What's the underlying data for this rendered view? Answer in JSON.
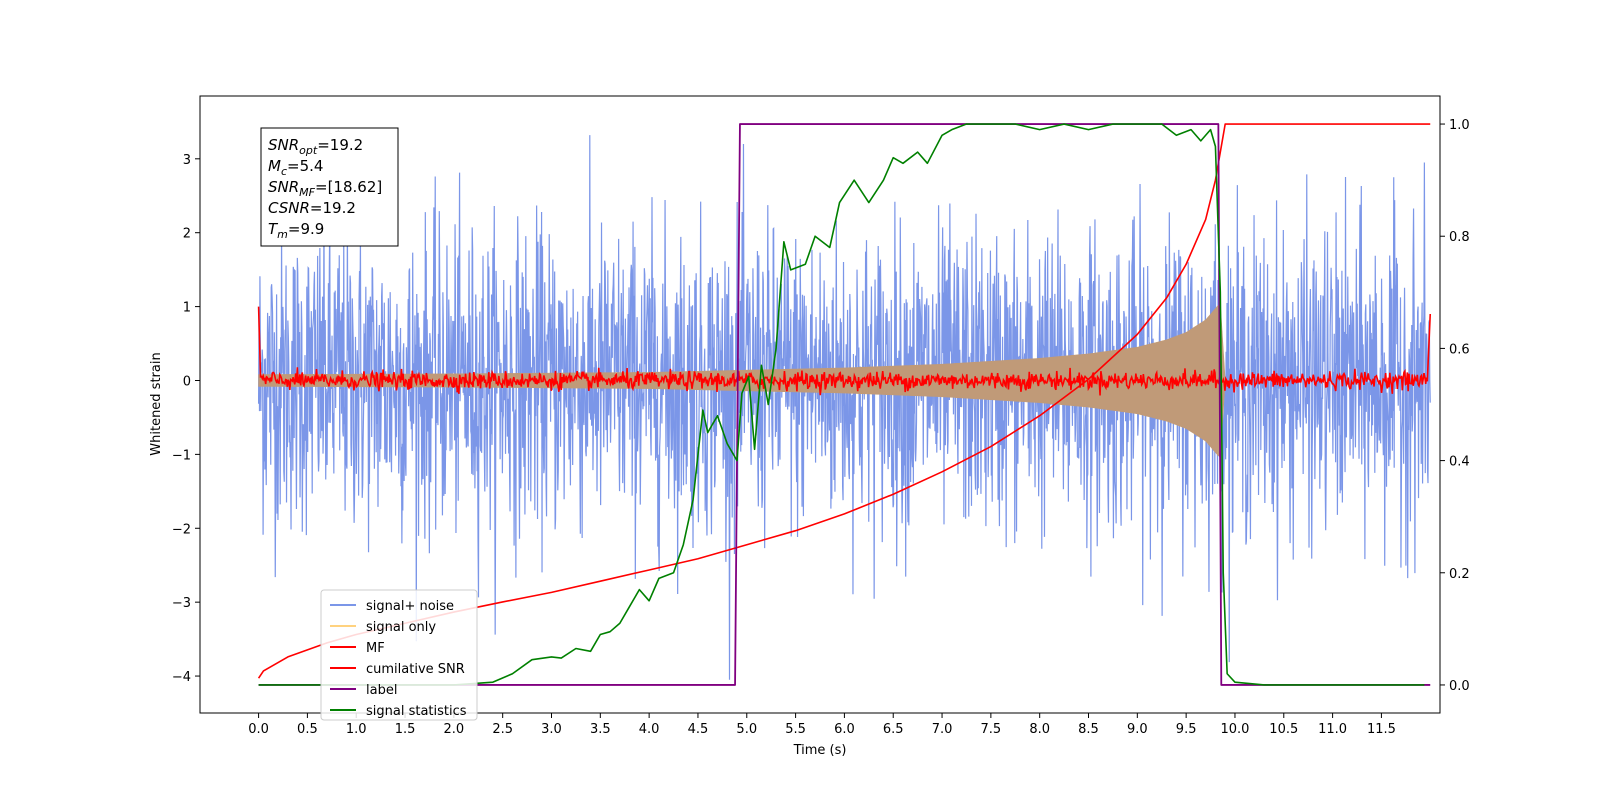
{
  "chart_data": {
    "type": "line",
    "xlabel": "Time (s)",
    "ylabel_left": "Whitened strain",
    "ylabel_right": "",
    "xlim": [
      -0.6,
      12.1
    ],
    "ylim_left": [
      -4.5,
      3.85
    ],
    "ylim_right": [
      -0.05,
      1.05
    ],
    "x_ticks": [
      0.0,
      0.5,
      1.0,
      1.5,
      2.0,
      2.5,
      3.0,
      3.5,
      4.0,
      4.5,
      5.0,
      5.5,
      6.0,
      6.5,
      7.0,
      7.5,
      8.0,
      8.5,
      9.0,
      9.5,
      10.0,
      10.5,
      11.0,
      11.5
    ],
    "x_tick_labels": [
      "0.0",
      "0.5",
      "1.0",
      "1.5",
      "2.0",
      "2.5",
      "3.0",
      "3.5",
      "4.0",
      "4.5",
      "5.0",
      "5.5",
      "6.0",
      "6.5",
      "7.0",
      "7.5",
      "8.0",
      "8.5",
      "9.0",
      "9.5",
      "10.0",
      "10.5",
      "11.0",
      "11.5"
    ],
    "y_left_ticks": [
      3,
      2,
      1,
      0,
      -1,
      -2,
      -3,
      -4
    ],
    "y_left_tick_labels": [
      "3",
      "2",
      "1",
      "0",
      "−1",
      "−2",
      "−3",
      "−4"
    ],
    "y_right_ticks": [
      1.0,
      0.8,
      0.6,
      0.4,
      0.2,
      0.0
    ],
    "y_right_tick_labels": [
      "1.0",
      "0.8",
      "0.6",
      "0.4",
      "0.2",
      "0.0"
    ],
    "grid": false,
    "legend_position": "lower-left",
    "annotation": [
      {
        "sym": "SNR",
        "sub": "opt",
        "val": "=19.2"
      },
      {
        "sym": "M",
        "sub": "c",
        "val": "=5.4"
      },
      {
        "sym": "SNR",
        "sub": "MF",
        "val": "=[18.62]"
      },
      {
        "sym": "CSNR",
        "sub": "",
        "val": "=19.2"
      },
      {
        "sym": "T",
        "sub": "m",
        "val": "=9.9"
      }
    ],
    "series": [
      {
        "name": "signal+ noise",
        "color": "#7b96e8",
        "axis": "left",
        "style": "noise",
        "t_start": 0.0,
        "t_end": 12.0,
        "typical_amplitude": 1.3,
        "peak_high": 3.5,
        "peak_low": -4.05
      },
      {
        "name": "signal only",
        "color": "#ffd27f",
        "visible_color": "#c09a78",
        "axis": "left",
        "style": "chirp_envelope",
        "t_start": 0.0,
        "t_end": 9.9,
        "envelope": [
          [
            0.0,
            0.08
          ],
          [
            2.0,
            0.09
          ],
          [
            4.0,
            0.11
          ],
          [
            6.0,
            0.17
          ],
          [
            7.0,
            0.22
          ],
          [
            8.0,
            0.3
          ],
          [
            8.5,
            0.36
          ],
          [
            9.0,
            0.45
          ],
          [
            9.3,
            0.55
          ],
          [
            9.5,
            0.65
          ],
          [
            9.7,
            0.82
          ],
          [
            9.85,
            1.05
          ],
          [
            9.9,
            0.0
          ]
        ]
      },
      {
        "name": "MF",
        "color": "#ff0000",
        "axis": "left",
        "style": "noise",
        "t_start": 0.0,
        "t_end": 12.0,
        "typical_amplitude": 0.06,
        "edge_values": [
          1.0,
          0.9
        ]
      },
      {
        "name": "cumilative SNR",
        "color": "#ff0000",
        "axis": "right",
        "t_start": 0.0,
        "t_end": 12.0,
        "points": [
          [
            0.0,
            0.012
          ],
          [
            0.05,
            0.025
          ],
          [
            0.3,
            0.05
          ],
          [
            0.7,
            0.075
          ],
          [
            1.0,
            0.09
          ],
          [
            1.5,
            0.11
          ],
          [
            2.0,
            0.13
          ],
          [
            2.5,
            0.148
          ],
          [
            3.0,
            0.165
          ],
          [
            3.5,
            0.185
          ],
          [
            4.0,
            0.205
          ],
          [
            4.5,
            0.225
          ],
          [
            5.0,
            0.25
          ],
          [
            5.5,
            0.275
          ],
          [
            6.0,
            0.305
          ],
          [
            6.5,
            0.34
          ],
          [
            7.0,
            0.38
          ],
          [
            7.5,
            0.425
          ],
          [
            8.0,
            0.48
          ],
          [
            8.5,
            0.545
          ],
          [
            9.0,
            0.625
          ],
          [
            9.3,
            0.69
          ],
          [
            9.5,
            0.75
          ],
          [
            9.7,
            0.83
          ],
          [
            9.8,
            0.9
          ],
          [
            9.85,
            0.95
          ],
          [
            9.9,
            1.0
          ],
          [
            12.0,
            1.0
          ]
        ]
      },
      {
        "name": "label",
        "color": "#800080",
        "axis": "right",
        "t_start": 0.0,
        "t_end": 12.0,
        "points": [
          [
            0.0,
            0.0
          ],
          [
            4.88,
            0.0
          ],
          [
            4.93,
            1.0
          ],
          [
            9.83,
            1.0
          ],
          [
            9.86,
            0.0
          ],
          [
            9.93,
            0.0
          ],
          [
            12.0,
            0.0
          ]
        ]
      },
      {
        "name": "signal statistics",
        "color": "#008000",
        "axis": "right",
        "t_start": 0.0,
        "t_end": 11.94,
        "points": [
          [
            0.0,
            0.0
          ],
          [
            2.0,
            0.0
          ],
          [
            2.4,
            0.005
          ],
          [
            2.6,
            0.02
          ],
          [
            2.8,
            0.045
          ],
          [
            3.0,
            0.05
          ],
          [
            3.1,
            0.048
          ],
          [
            3.25,
            0.065
          ],
          [
            3.4,
            0.06
          ],
          [
            3.5,
            0.09
          ],
          [
            3.6,
            0.095
          ],
          [
            3.7,
            0.11
          ],
          [
            3.8,
            0.14
          ],
          [
            3.9,
            0.17
          ],
          [
            4.0,
            0.15
          ],
          [
            4.1,
            0.19
          ],
          [
            4.25,
            0.2
          ],
          [
            4.35,
            0.25
          ],
          [
            4.45,
            0.33
          ],
          [
            4.55,
            0.49
          ],
          [
            4.6,
            0.45
          ],
          [
            4.7,
            0.48
          ],
          [
            4.8,
            0.43
          ],
          [
            4.9,
            0.4
          ],
          [
            4.95,
            0.52
          ],
          [
            5.02,
            0.55
          ],
          [
            5.08,
            0.42
          ],
          [
            5.15,
            0.57
          ],
          [
            5.22,
            0.5
          ],
          [
            5.3,
            0.6
          ],
          [
            5.38,
            0.79
          ],
          [
            5.45,
            0.74
          ],
          [
            5.6,
            0.75
          ],
          [
            5.7,
            0.8
          ],
          [
            5.85,
            0.78
          ],
          [
            5.95,
            0.86
          ],
          [
            6.1,
            0.9
          ],
          [
            6.25,
            0.86
          ],
          [
            6.4,
            0.9
          ],
          [
            6.5,
            0.94
          ],
          [
            6.6,
            0.93
          ],
          [
            6.75,
            0.95
          ],
          [
            6.85,
            0.93
          ],
          [
            7.0,
            0.98
          ],
          [
            7.1,
            0.99
          ],
          [
            7.25,
            1.0
          ],
          [
            7.5,
            1.0
          ],
          [
            7.75,
            1.0
          ],
          [
            8.0,
            0.99
          ],
          [
            8.25,
            1.0
          ],
          [
            8.5,
            0.99
          ],
          [
            8.75,
            1.0
          ],
          [
            9.0,
            1.0
          ],
          [
            9.25,
            1.0
          ],
          [
            9.4,
            0.98
          ],
          [
            9.55,
            0.99
          ],
          [
            9.65,
            0.97
          ],
          [
            9.75,
            0.99
          ],
          [
            9.8,
            0.96
          ],
          [
            9.85,
            0.7
          ],
          [
            9.88,
            0.2
          ],
          [
            9.92,
            0.02
          ],
          [
            10.0,
            0.005
          ],
          [
            10.3,
            0.0
          ],
          [
            11.94,
            0.0
          ]
        ]
      }
    ]
  }
}
